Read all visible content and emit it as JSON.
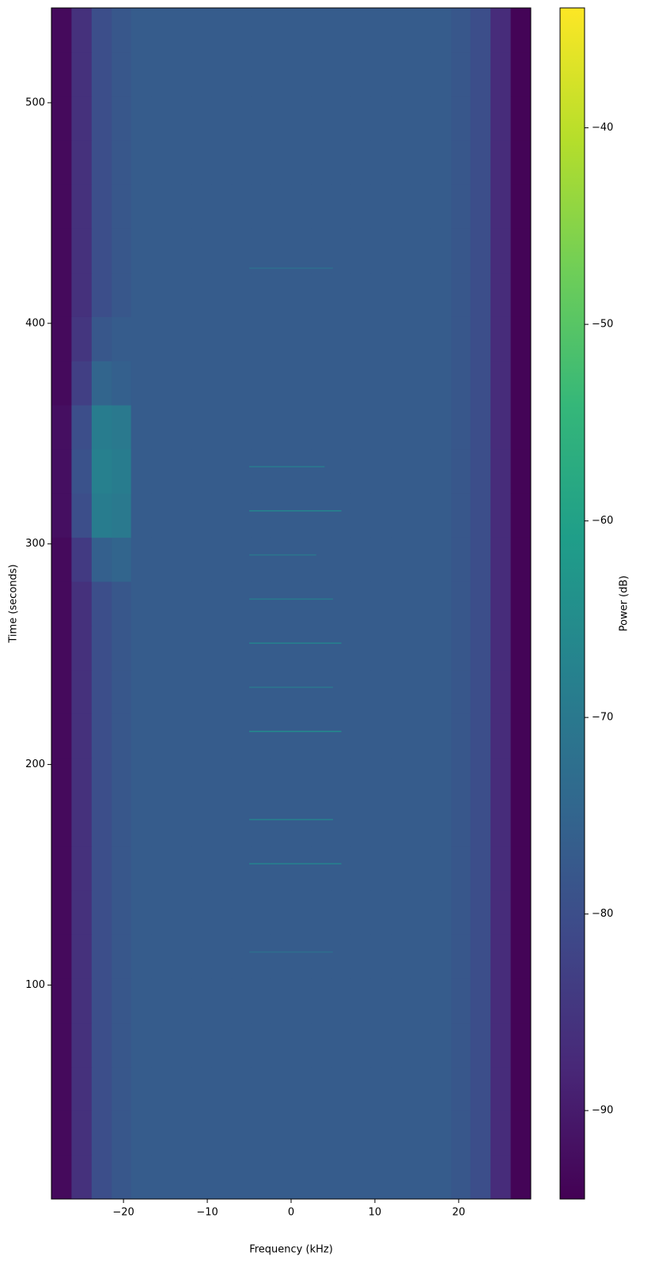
{
  "chart_data": {
    "type": "heatmap",
    "xlabel": "Frequency (kHz)",
    "ylabel": "Time (seconds)",
    "colorbar_label": "Power (dB)",
    "colormap": "viridis",
    "xlim": [
      -28.6,
      28.6
    ],
    "ylim": [
      3,
      543
    ],
    "clim": [
      -94.5,
      -33.9
    ],
    "xticks": [
      {
        "value": -20,
        "label": "−20"
      },
      {
        "value": -10,
        "label": "−10"
      },
      0,
      10,
      20
    ],
    "yticks": [
      100,
      200,
      300,
      400,
      500
    ],
    "cticks": [
      {
        "value": -90,
        "label": "−90"
      },
      {
        "value": -80,
        "label": "−80"
      },
      {
        "value": -70,
        "label": "−70"
      },
      {
        "value": -60,
        "label": "−60"
      },
      {
        "value": -50,
        "label": "−50"
      },
      {
        "value": -40,
        "label": "−40"
      }
    ],
    "xbins": [
      -28.6,
      -26.2,
      -23.8,
      -21.4,
      -19.1,
      -16.7,
      -14.3,
      -11.9,
      -9.5,
      -7.1,
      -4.8,
      -2.4,
      0,
      2.4,
      4.8,
      7.1,
      9.5,
      11.9,
      14.3,
      16.7,
      19.1,
      21.4,
      23.8,
      26.2,
      28.6
    ],
    "ybins": [
      3,
      23,
      43,
      63,
      83,
      103,
      123,
      143,
      163,
      183,
      203,
      223,
      243,
      263,
      283,
      303,
      323,
      343,
      363,
      383,
      403,
      423,
      443,
      463,
      483,
      503,
      523,
      543
    ],
    "values": [
      [
        -93,
        -86,
        -80,
        -78,
        -77,
        -77,
        -77,
        -77,
        -77,
        -77,
        -77,
        -77,
        -77,
        -77,
        -77,
        -77,
        -77,
        -77,
        -77,
        -77,
        -78,
        -80,
        -87,
        -94
      ],
      [
        -93,
        -86,
        -80,
        -78,
        -77,
        -77,
        -77,
        -77,
        -77,
        -77,
        -77,
        -77,
        -77,
        -77,
        -77,
        -77,
        -77,
        -77,
        -77,
        -77,
        -78,
        -80,
        -87,
        -94
      ],
      [
        -93,
        -86,
        -80,
        -78,
        -77,
        -77,
        -77,
        -77,
        -77,
        -77,
        -77,
        -77,
        -77,
        -77,
        -77,
        -77,
        -77,
        -77,
        -77,
        -77,
        -78,
        -80,
        -87,
        -94
      ],
      [
        -93,
        -86,
        -80,
        -78,
        -77,
        -77,
        -77,
        -77,
        -77,
        -77,
        -77,
        -77,
        -77,
        -77,
        -77,
        -77,
        -77,
        -77,
        -77,
        -77,
        -78,
        -80,
        -87,
        -94
      ],
      [
        -93,
        -86,
        -80,
        -78,
        -77,
        -77,
        -77,
        -77,
        -77,
        -77,
        -77,
        -77,
        -77,
        -77,
        -77,
        -77,
        -77,
        -77,
        -77,
        -77,
        -78,
        -80,
        -87,
        -94
      ],
      [
        -93,
        -86,
        -80,
        -78,
        -77,
        -77,
        -77,
        -77,
        -77,
        -77,
        -77,
        -77,
        -77,
        -77,
        -77,
        -77,
        -77,
        -77,
        -77,
        -77,
        -78,
        -80,
        -87,
        -94
      ],
      [
        -93,
        -86,
        -80,
        -78,
        -77,
        -77,
        -77,
        -77,
        -77,
        -77,
        -77,
        -77,
        -77,
        -77,
        -77,
        -77,
        -77,
        -77,
        -77,
        -77,
        -78,
        -80,
        -87,
        -94
      ],
      [
        -93,
        -86,
        -80,
        -78,
        -77,
        -77,
        -77,
        -77,
        -77,
        -77,
        -77,
        -77,
        -77,
        -77,
        -77,
        -77,
        -77,
        -77,
        -77,
        -77,
        -78,
        -80,
        -87,
        -94
      ],
      [
        -93,
        -86,
        -80,
        -78,
        -77,
        -77,
        -77,
        -77,
        -77,
        -77,
        -77,
        -77,
        -77,
        -77,
        -77,
        -77,
        -77,
        -77,
        -77,
        -77,
        -78,
        -80,
        -87,
        -94
      ],
      [
        -93,
        -86,
        -80,
        -78,
        -77,
        -77,
        -77,
        -77,
        -77,
        -77,
        -77,
        -77,
        -77,
        -77,
        -77,
        -77,
        -77,
        -77,
        -77,
        -77,
        -78,
        -80,
        -87,
        -94
      ],
      [
        -93,
        -86,
        -80,
        -78,
        -77,
        -77,
        -77,
        -77,
        -77,
        -77,
        -77,
        -77,
        -77,
        -77,
        -77,
        -77,
        -77,
        -77,
        -77,
        -77,
        -78,
        -80,
        -87,
        -94
      ],
      [
        -93,
        -86,
        -80,
        -78,
        -77,
        -77,
        -77,
        -77,
        -77,
        -77,
        -77,
        -77,
        -77,
        -77,
        -77,
        -77,
        -77,
        -77,
        -77,
        -77,
        -78,
        -80,
        -87,
        -94
      ],
      [
        -93,
        -86,
        -80,
        -78,
        -77,
        -77,
        -77,
        -77,
        -77,
        -77,
        -77,
        -77,
        -77,
        -77,
        -77,
        -77,
        -77,
        -77,
        -77,
        -77,
        -78,
        -80,
        -87,
        -94
      ],
      [
        -93,
        -86,
        -80,
        -78,
        -77,
        -77,
        -77,
        -77,
        -77,
        -77,
        -77,
        -77,
        -77,
        -77,
        -77,
        -77,
        -77,
        -77,
        -77,
        -77,
        -78,
        -80,
        -87,
        -94
      ],
      [
        -93,
        -84,
        -76,
        -75,
        -77,
        -77,
        -77,
        -77,
        -77,
        -77,
        -77,
        -77,
        -77,
        -77,
        -77,
        -77,
        -77,
        -77,
        -77,
        -77,
        -78,
        -80,
        -87,
        -94
      ],
      [
        -92,
        -80,
        -69,
        -70,
        -77,
        -77,
        -77,
        -77,
        -77,
        -77,
        -77,
        -77,
        -77,
        -77,
        -77,
        -77,
        -77,
        -77,
        -77,
        -77,
        -78,
        -80,
        -87,
        -94
      ],
      [
        -92,
        -79,
        -68,
        -69,
        -77,
        -77,
        -77,
        -77,
        -77,
        -77,
        -77,
        -77,
        -77,
        -77,
        -77,
        -77,
        -77,
        -77,
        -77,
        -77,
        -78,
        -80,
        -87,
        -94
      ],
      [
        -92,
        -80,
        -69,
        -70,
        -77,
        -77,
        -77,
        -77,
        -77,
        -77,
        -77,
        -77,
        -77,
        -77,
        -77,
        -77,
        -77,
        -77,
        -77,
        -77,
        -78,
        -80,
        -87,
        -94
      ],
      [
        -93,
        -83,
        -75,
        -76,
        -77,
        -77,
        -77,
        -77,
        -77,
        -77,
        -77,
        -77,
        -77,
        -77,
        -77,
        -77,
        -77,
        -77,
        -77,
        -77,
        -78,
        -80,
        -87,
        -94
      ],
      [
        -93,
        -85,
        -78,
        -77,
        -77,
        -77,
        -77,
        -77,
        -77,
        -77,
        -77,
        -77,
        -77,
        -77,
        -77,
        -77,
        -77,
        -77,
        -77,
        -77,
        -78,
        -80,
        -87,
        -94
      ],
      [
        -93,
        -86,
        -80,
        -78,
        -77,
        -77,
        -77,
        -77,
        -77,
        -77,
        -77,
        -77,
        -77,
        -77,
        -77,
        -77,
        -77,
        -77,
        -77,
        -77,
        -78,
        -80,
        -87,
        -94
      ],
      [
        -93,
        -86,
        -80,
        -78,
        -77,
        -77,
        -77,
        -77,
        -77,
        -77,
        -77,
        -77,
        -77,
        -77,
        -77,
        -77,
        -77,
        -77,
        -77,
        -77,
        -78,
        -80,
        -87,
        -94
      ],
      [
        -93,
        -86,
        -80,
        -78,
        -77,
        -77,
        -77,
        -77,
        -77,
        -77,
        -77,
        -77,
        -77,
        -77,
        -77,
        -77,
        -77,
        -77,
        -77,
        -77,
        -78,
        -80,
        -87,
        -94
      ],
      [
        -93,
        -86,
        -80,
        -78,
        -77,
        -77,
        -77,
        -77,
        -77,
        -77,
        -77,
        -77,
        -77,
        -77,
        -77,
        -77,
        -77,
        -77,
        -77,
        -77,
        -78,
        -80,
        -87,
        -94
      ],
      [
        -93,
        -86,
        -80,
        -78,
        -77,
        -77,
        -77,
        -77,
        -77,
        -77,
        -77,
        -77,
        -77,
        -77,
        -77,
        -77,
        -77,
        -77,
        -77,
        -77,
        -78,
        -80,
        -87,
        -94
      ],
      [
        -93,
        -86,
        -80,
        -78,
        -77,
        -77,
        -77,
        -77,
        -77,
        -77,
        -77,
        -77,
        -77,
        -77,
        -77,
        -77,
        -77,
        -77,
        -77,
        -77,
        -78,
        -80,
        -87,
        -94
      ],
      [
        -93,
        -86,
        -80,
        -78,
        -77,
        -77,
        -77,
        -77,
        -77,
        -77,
        -77,
        -77,
        -77,
        -77,
        -77,
        -77,
        -77,
        -77,
        -77,
        -77,
        -78,
        -80,
        -87,
        -94
      ]
    ],
    "tones": {
      "time": [
        115,
        155,
        175,
        215,
        235,
        255,
        275,
        295,
        315,
        335,
        425
      ],
      "fmin": [
        -5,
        -5,
        -5,
        -5,
        -5,
        -5,
        -5,
        -5,
        -5,
        -5,
        -5
      ],
      "fmax": [
        5,
        6,
        5,
        6,
        5,
        6,
        5,
        3,
        6,
        4,
        5
      ],
      "power": [
        -73,
        -68,
        -68,
        -66,
        -71,
        -68,
        -70,
        -71,
        -67,
        -70,
        -73
      ]
    }
  }
}
